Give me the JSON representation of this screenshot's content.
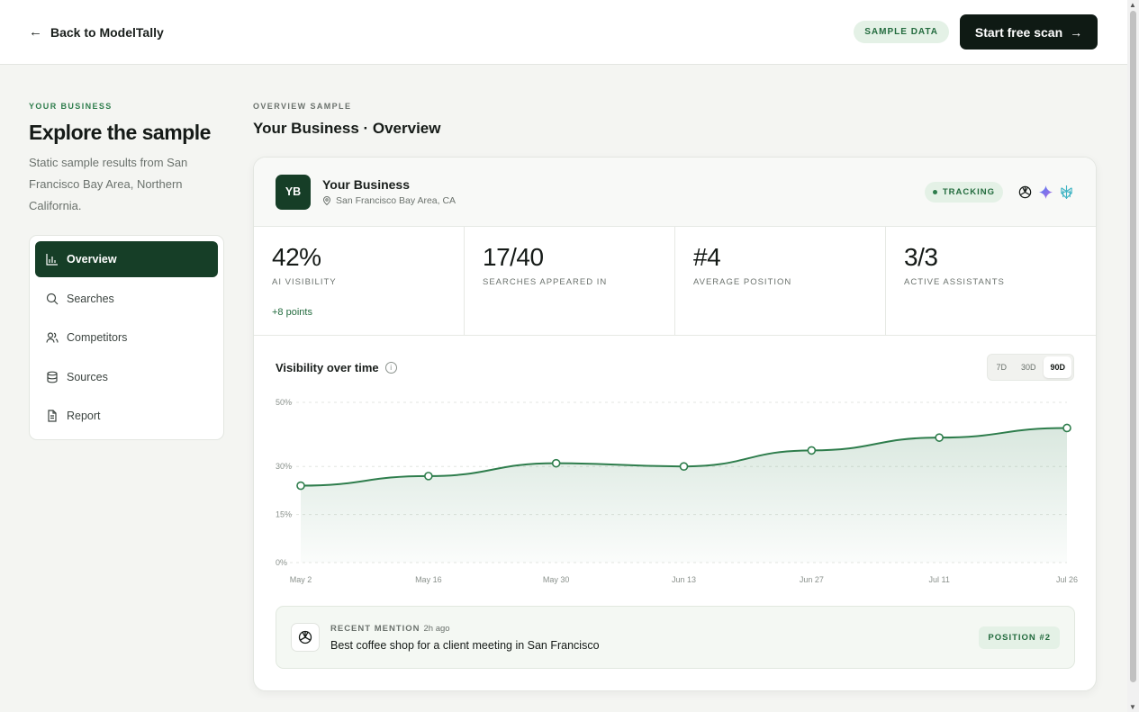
{
  "header": {
    "back_label": "Back to ModelTally",
    "sample_badge": "SAMPLE DATA",
    "cta_label": "Start free scan"
  },
  "sidebar": {
    "eyebrow": "YOUR BUSINESS",
    "title": "Explore the sample",
    "description": "Static sample results from San Francisco Bay Area, Northern California.",
    "items": [
      {
        "label": "Overview",
        "icon": "bar-chart-icon",
        "active": true
      },
      {
        "label": "Searches",
        "icon": "search-icon",
        "active": false
      },
      {
        "label": "Competitors",
        "icon": "users-icon",
        "active": false
      },
      {
        "label": "Sources",
        "icon": "database-icon",
        "active": false
      },
      {
        "label": "Report",
        "icon": "document-icon",
        "active": false
      }
    ]
  },
  "main": {
    "eyebrow": "OVERVIEW SAMPLE",
    "title": "Your Business · Overview"
  },
  "business": {
    "initials": "YB",
    "name": "Your Business",
    "location": "San Francisco Bay Area, CA",
    "status": "TRACKING",
    "assistants": [
      "chatgpt-icon",
      "gemini-icon",
      "perplexity-icon"
    ]
  },
  "stats": [
    {
      "value": "42%",
      "label": "AI VISIBILITY",
      "delta": "+8 points"
    },
    {
      "value": "17/40",
      "label": "SEARCHES APPEARED IN",
      "delta": ""
    },
    {
      "value": "#4",
      "label": "AVERAGE POSITION",
      "delta": ""
    },
    {
      "value": "3/3",
      "label": "ACTIVE ASSISTANTS",
      "delta": ""
    }
  ],
  "chart": {
    "title": "Visibility over time",
    "ranges": [
      "7D",
      "30D",
      "90D"
    ],
    "selected_range": "90D",
    "accent": "#2e7d4c"
  },
  "chart_data": {
    "type": "area",
    "title": "Visibility over time",
    "x": [
      "May 2",
      "May 16",
      "May 30",
      "Jun 13",
      "Jun 27",
      "Jul 11",
      "Jul 26"
    ],
    "series": [
      {
        "values": [
          24,
          27,
          31,
          30,
          35,
          39,
          42
        ]
      }
    ],
    "y_ticks": [
      "0%",
      "15%",
      "30%",
      "50%"
    ],
    "y_tick_values": [
      0,
      15,
      30,
      50
    ],
    "ylim": [
      0,
      50
    ],
    "grid": true
  },
  "mention": {
    "eyebrow": "RECENT MENTION",
    "ago": "2h ago",
    "text": "Best coffee shop for a client meeting in San Francisco",
    "badge": "POSITION #2"
  }
}
